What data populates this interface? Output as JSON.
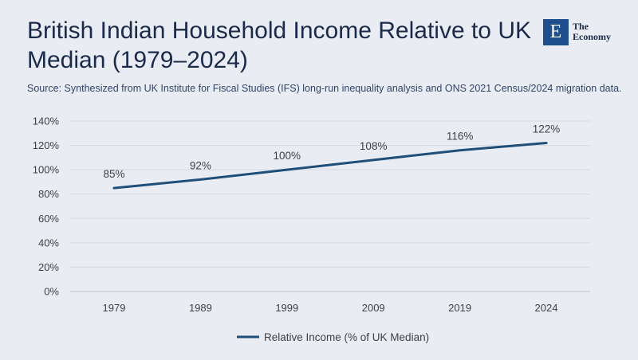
{
  "header": {
    "title": "British Indian Household Income Relative to UK Median (1979–2024)",
    "source": "Source: Synthesized from UK Institute for Fiscal Studies (IFS) long-run inequality analysis and ONS 2021 Census/2024 migration data."
  },
  "logo": {
    "mark": "E",
    "line1": "The",
    "line2": "Economy",
    "color": "#1e4e8c"
  },
  "chart_data": {
    "type": "line",
    "title": "British Indian Household Income Relative to UK Median (1979–2024)",
    "categories": [
      "1979",
      "1989",
      "1999",
      "2009",
      "2019",
      "2024"
    ],
    "series": [
      {
        "name": "Relative Income (% of UK Median)",
        "values": [
          85,
          92,
          100,
          108,
          116,
          122
        ],
        "labels": [
          "85%",
          "92%",
          "100%",
          "108%",
          "116%",
          "122%"
        ],
        "color": "#1f4e79"
      }
    ],
    "ylim": [
      0,
      140
    ],
    "yticks": [
      0,
      20,
      40,
      60,
      80,
      100,
      120,
      140
    ],
    "ytick_labels": [
      "0%",
      "20%",
      "40%",
      "60%",
      "80%",
      "100%",
      "120%",
      "140%"
    ],
    "grid": true,
    "legend": "bottom"
  }
}
